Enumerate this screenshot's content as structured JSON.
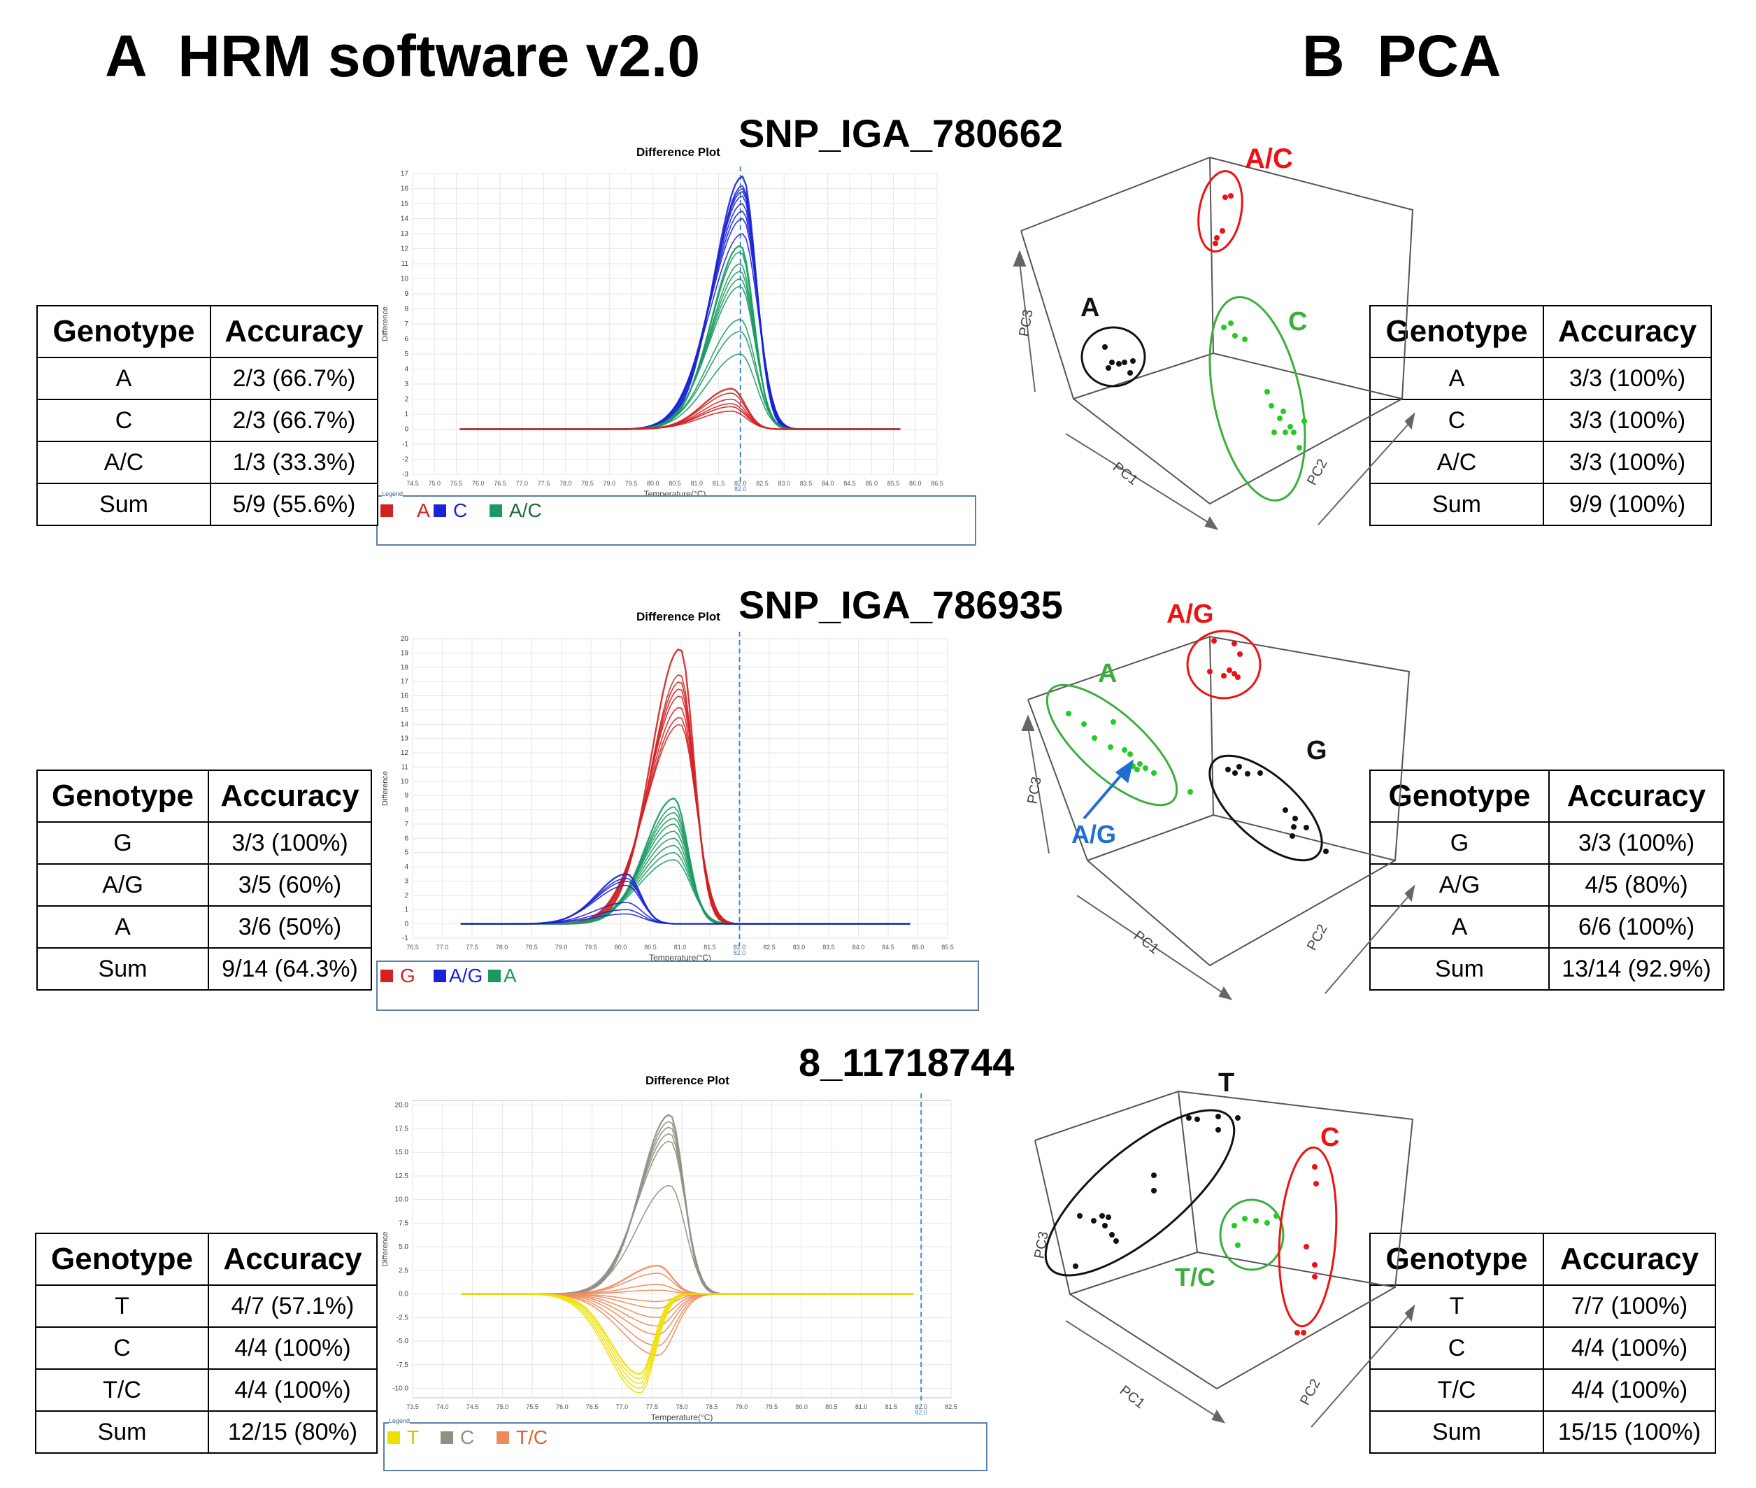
{
  "panel_a_heading": "A  HRM software v2.0",
  "panel_b_heading": "B  PCA",
  "plot_title": "Difference Plot",
  "plot_xlabel": "Temperature(°C)",
  "plot_ylabel": "Difference",
  "legend_label": "Legend",
  "pca_axis_labels": {
    "pc1": "PC1",
    "pc2": "PC2",
    "pc3": "PC3"
  },
  "colors": {
    "red": "#d42020",
    "blue": "#1a24d6",
    "green": "#1a9a62",
    "yellow": "#f0e000",
    "grey": "#8f8f84",
    "orange": "#f08a5a",
    "pca_red": "#ee1111",
    "pca_green": "#22cc22",
    "pca_green_line": "#3cae3c",
    "arrow_blue": "#1f6fd0"
  },
  "table_headers": {
    "genotype": "Genotype",
    "accuracy": "Accuracy"
  },
  "snps": [
    {
      "name": "SNP_IGA_780662",
      "hrm_table": [
        [
          "A",
          "2/3 (66.7%)"
        ],
        [
          "C",
          "2/3 (66.7%)"
        ],
        [
          "A/C",
          "1/3 (33.3%)"
        ],
        [
          "Sum",
          "5/9 (55.6%)"
        ]
      ],
      "pca_table": [
        [
          "A",
          "3/3 (100%)"
        ],
        [
          "C",
          "3/3 (100%)"
        ],
        [
          "A/C",
          "3/3 (100%)"
        ],
        [
          "Sum",
          "9/9 (100%)"
        ]
      ],
      "legend": [
        {
          "label": "A",
          "color": "#d42020"
        },
        {
          "label": "C",
          "color": "#1a24d6"
        },
        {
          "label": "A/C",
          "color": "#1a9a62"
        }
      ],
      "cluster_labels": [
        "A/C",
        "A",
        "C"
      ],
      "plot_cursor": "82.0"
    },
    {
      "name": "SNP_IGA_786935",
      "hrm_table": [
        [
          "G",
          "3/3 (100%)"
        ],
        [
          "A/G",
          "3/5 (60%)"
        ],
        [
          "A",
          "3/6 (50%)"
        ],
        [
          "Sum",
          "9/14 (64.3%)"
        ]
      ],
      "pca_table": [
        [
          "G",
          "3/3 (100%)"
        ],
        [
          "A/G",
          "4/5 (80%)"
        ],
        [
          "A",
          "6/6 (100%)"
        ],
        [
          "Sum",
          "13/14 (92.9%)"
        ]
      ],
      "legend": [
        {
          "label": "G",
          "color": "#d42020"
        },
        {
          "label": "A/G",
          "color": "#1a24d6"
        },
        {
          "label": "A",
          "color": "#1a9a62"
        }
      ],
      "cluster_labels": [
        "A/G",
        "A",
        "G",
        "A/G"
      ],
      "plot_cursor": "82.0"
    },
    {
      "name": "8_11718744",
      "hrm_table": [
        [
          "T",
          "4/7 (57.1%)"
        ],
        [
          "C",
          "4/4 (100%)"
        ],
        [
          "T/C",
          "4/4 (100%)"
        ],
        [
          "Sum",
          "12/15 (80%)"
        ]
      ],
      "pca_table": [
        [
          "T",
          "7/7 (100%)"
        ],
        [
          "C",
          "4/4 (100%)"
        ],
        [
          "T/C",
          "4/4 (100%)"
        ],
        [
          "Sum",
          "15/15 (100%)"
        ]
      ],
      "legend": [
        {
          "label": "T",
          "color": "#f0e000"
        },
        {
          "label": "C",
          "color": "#8f8f84"
        },
        {
          "label": "T/C",
          "color": "#f08a5a"
        }
      ],
      "cluster_labels": [
        "T",
        "C",
        "T/C"
      ],
      "plot_cursor": "82.0"
    }
  ],
  "chart_data": [
    {
      "type": "line",
      "title": "Difference Plot",
      "xlabel": "Temperature(°C)",
      "ylabel": "Difference",
      "x_ticks": [
        "74.5",
        "75.0",
        "75.5",
        "76.0",
        "76.5",
        "77.0",
        "77.5",
        "78.0",
        "78.5",
        "79.0",
        "79.5",
        "80.0",
        "80.5",
        "81.0",
        "81.5",
        "82.0",
        "82.5",
        "83.0",
        "83.5",
        "84.0",
        "84.5",
        "85.0",
        "85.5",
        "86.0",
        "86.5"
      ],
      "y_ticks": [
        "-3",
        "-2",
        "-1",
        "0",
        "1",
        "2",
        "3",
        "4",
        "5",
        "6",
        "7",
        "8",
        "9",
        "10",
        "11",
        "12",
        "13",
        "14",
        "15",
        "16",
        "17"
      ],
      "xlim": [
        74.5,
        86.5
      ],
      "ylim": [
        -3,
        17
      ],
      "vline": 82.0,
      "series": [
        {
          "name": "C",
          "color": "#1a24d6",
          "peaks": [
            16.8,
            16.2,
            16.0,
            15.8,
            15.5,
            15.0,
            14.5,
            14.0,
            13.0
          ],
          "center": 82.05
        },
        {
          "name": "A/C",
          "color": "#1a9a62",
          "peaks": [
            12.2,
            11.8,
            11.0,
            10.5,
            10.0,
            9.5,
            7.3,
            6.5,
            5.0
          ],
          "center": 82.0
        },
        {
          "name": "A",
          "color": "#d42020",
          "peaks": [
            2.7,
            2.4,
            2.0,
            1.7,
            1.5,
            1.2
          ],
          "center": 81.8
        }
      ]
    },
    {
      "type": "line",
      "title": "Difference Plot",
      "xlabel": "Temperature(°C)",
      "ylabel": "Difference",
      "x_ticks": [
        "76.5",
        "77.0",
        "77.5",
        "78.0",
        "78.5",
        "79.0",
        "79.5",
        "80.0",
        "80.5",
        "81.0",
        "81.5",
        "82.0",
        "82.5",
        "83.0",
        "83.5",
        "84.0",
        "84.5",
        "85.0",
        "85.5"
      ],
      "y_ticks": [
        "-1",
        "0",
        "1",
        "2",
        "3",
        "4",
        "5",
        "6",
        "7",
        "8",
        "9",
        "10",
        "11",
        "12",
        "13",
        "14",
        "15",
        "16",
        "17",
        "18",
        "19",
        "20"
      ],
      "xlim": [
        76.5,
        85.5
      ],
      "ylim": [
        -1,
        20
      ],
      "vline": 82.0,
      "series": [
        {
          "name": "G",
          "color": "#d42020",
          "peaks": [
            19.3,
            17.5,
            17.0,
            16.5,
            16.0,
            15.2,
            14.5,
            14.0
          ],
          "center": 81.0
        },
        {
          "name": "A",
          "color": "#1a9a62",
          "peaks": [
            8.8,
            8.2,
            7.8,
            7.4,
            7.0,
            6.5,
            6.0,
            5.5,
            5.0,
            4.5
          ],
          "center": 80.9
        },
        {
          "name": "A/G",
          "color": "#1a24d6",
          "peaks": [
            3.5,
            3.2,
            3.0,
            2.7,
            1.5,
            1.0,
            0.7
          ],
          "center": 80.1
        }
      ]
    },
    {
      "type": "line",
      "title": "Difference Plot",
      "xlabel": "Temperature(°C)",
      "ylabel": "Difference",
      "x_ticks": [
        "73.5",
        "74.0",
        "74.5",
        "75.0",
        "75.5",
        "76.0",
        "76.5",
        "77.0",
        "77.5",
        "78.0",
        "78.5",
        "79.0",
        "79.5",
        "80.0",
        "80.5",
        "81.0",
        "81.5",
        "82.0",
        "82.5"
      ],
      "y_ticks": [
        "-10.0",
        "-7.5",
        "-5.0",
        "-2.5",
        "0.0",
        "2.5",
        "5.0",
        "7.5",
        "10.0",
        "12.5",
        "15.0",
        "17.5",
        "20.0"
      ],
      "xlim": [
        73.5,
        82.5
      ],
      "ylim": [
        -11,
        20.5
      ],
      "vline": 82.0,
      "series": [
        {
          "name": "C",
          "color": "#8f8f84",
          "peaks": [
            19.0,
            18.3,
            17.7,
            17.0,
            16.2,
            11.5
          ],
          "center": 77.8
        },
        {
          "name": "T/C",
          "color": "#f08a5a",
          "peaks": [
            3.0,
            2.2,
            1.0,
            0.4,
            -0.8,
            -1.5,
            -2.5,
            -3.4,
            -4.3,
            -5.5,
            -6.5
          ],
          "center": 77.6
        },
        {
          "name": "T",
          "color": "#f0e000",
          "peaks": [
            -8.5,
            -9.0,
            -9.5,
            -10.0,
            -10.5
          ],
          "center": 77.3
        }
      ]
    }
  ]
}
